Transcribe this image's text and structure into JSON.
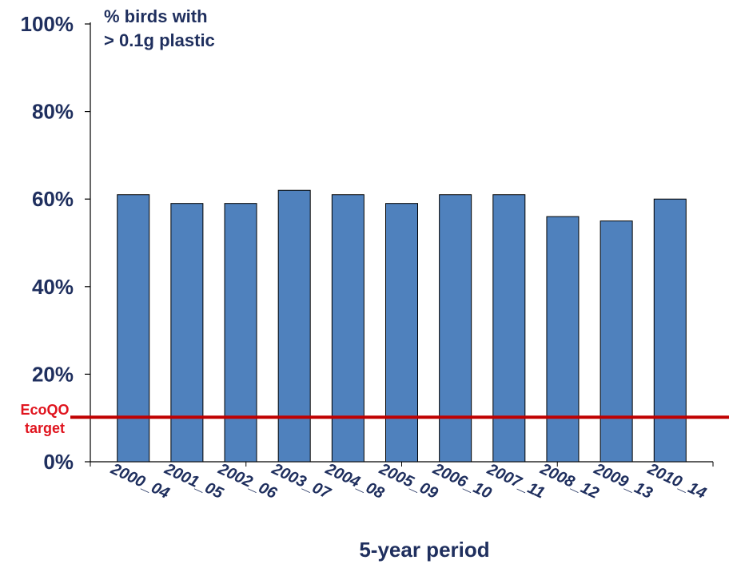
{
  "chart_data": {
    "type": "bar",
    "title_lines": [
      "% birds with",
      "> 0.1g plastic"
    ],
    "xlabel": "5-year period",
    "ylabel": "",
    "ylim": [
      0,
      100
    ],
    "yticks": [
      0,
      20,
      40,
      60,
      80,
      100
    ],
    "ytick_labels": [
      "0%",
      "20%",
      "40%",
      "60%",
      "80%",
      "100%"
    ],
    "categories": [
      "2000_04",
      "2001_05",
      "2002_06",
      "2003_07",
      "2004_08",
      "2005_09",
      "2006_10",
      "2007_11",
      "2008_12",
      "2009_13",
      "2010_14"
    ],
    "values": [
      61,
      59,
      59,
      62,
      61,
      59,
      61,
      61,
      56,
      55,
      60
    ],
    "reference_line": {
      "value": 10,
      "label_lines": [
        "EcoQO",
        "target"
      ]
    },
    "grid": false,
    "colors": {
      "bar": "#4f81bd",
      "bar_edge": "#000000",
      "target": "#c00000",
      "target_text": "#e0141e",
      "text": "#1f2f5e"
    }
  }
}
